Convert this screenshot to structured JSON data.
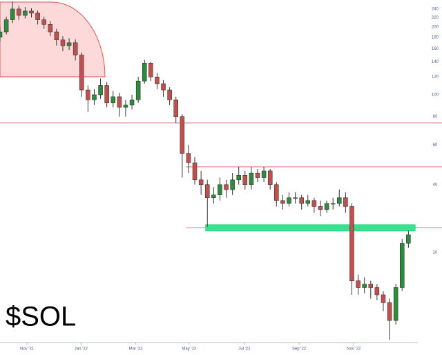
{
  "chart_data": {
    "type": "candlestick",
    "title": "$SOL",
    "log_scale": true,
    "up_color": "#2e8b3e",
    "down_color": "#c0504d",
    "x": [
      0,
      1,
      2,
      3,
      4,
      5,
      6,
      7,
      8,
      9,
      10,
      11,
      12,
      13,
      14,
      15,
      16,
      17,
      18,
      19,
      20,
      21,
      22,
      23,
      24,
      25,
      26,
      27,
      28,
      29,
      30,
      31,
      32,
      33,
      34,
      35,
      36,
      37,
      38,
      39,
      40,
      41,
      42,
      43,
      44,
      45,
      46,
      47,
      48,
      49,
      50,
      51,
      52,
      53,
      54,
      55,
      56,
      57,
      58,
      59,
      60,
      61,
      62,
      63,
      64,
      65
    ],
    "open": [
      180,
      190,
      215,
      240,
      225,
      235,
      230,
      215,
      205,
      190,
      175,
      165,
      170,
      150,
      105,
      95,
      100,
      110,
      92,
      98,
      88,
      90,
      95,
      115,
      138,
      120,
      112,
      105,
      95,
      80,
      55,
      50,
      42,
      40,
      35,
      36,
      40,
      38,
      42,
      44,
      40,
      45,
      43,
      46,
      40,
      34,
      33,
      35,
      35,
      33,
      34,
      32,
      31,
      33,
      33,
      35,
      32,
      15,
      14,
      14.5,
      14,
      13,
      12,
      10,
      14,
      22
    ],
    "high": [
      200,
      222,
      259,
      248,
      245,
      242,
      236,
      222,
      212,
      196,
      182,
      178,
      176,
      154,
      110,
      106,
      118,
      114,
      104,
      102,
      95,
      100,
      120,
      143,
      140,
      125,
      116,
      108,
      98,
      82,
      60,
      53,
      46,
      42,
      39,
      43,
      42,
      45,
      48,
      46,
      48,
      47,
      48,
      47,
      41,
      36,
      37,
      37,
      36,
      36,
      35,
      34,
      34,
      35,
      38,
      37,
      33,
      16,
      15.5,
      15,
      14.5,
      13.5,
      12.5,
      14.5,
      23,
      25
    ],
    "low": [
      172,
      185,
      208,
      215,
      218,
      220,
      205,
      196,
      182,
      165,
      156,
      158,
      142,
      98,
      84,
      90,
      96,
      88,
      88,
      80,
      80,
      86,
      92,
      112,
      115,
      106,
      98,
      90,
      75,
      43,
      45,
      40,
      36,
      26,
      33,
      34,
      35,
      36,
      40,
      38,
      38,
      41,
      41,
      38,
      32,
      31,
      32,
      33,
      31,
      32,
      30,
      29,
      30,
      31,
      32,
      30,
      13,
      13,
      13.2,
      12.5,
      12.3,
      11,
      8.2,
      9.6,
      13.5,
      21
    ],
    "close": [
      190,
      215,
      240,
      225,
      235,
      230,
      215,
      205,
      190,
      175,
      165,
      170,
      150,
      105,
      95,
      100,
      110,
      92,
      98,
      88,
      90,
      95,
      115,
      138,
      120,
      112,
      105,
      95,
      80,
      55,
      50,
      42,
      40,
      35,
      36,
      40,
      38,
      42,
      44,
      40,
      45,
      43,
      46,
      40,
      34,
      33,
      35,
      35,
      33,
      34,
      32,
      31,
      33,
      33,
      35,
      32,
      15,
      14,
      14.5,
      14,
      13,
      12,
      10,
      14,
      22,
      24
    ],
    "xlim": [
      0,
      66.5
    ],
    "xticks": [
      {
        "value": 4.3,
        "label": "Nov '21"
      },
      {
        "value": 12.9,
        "label": "Jan '22"
      },
      {
        "value": 21.6,
        "label": "Mar '22"
      },
      {
        "value": 30.1,
        "label": "May '22"
      },
      {
        "value": 38.9,
        "label": "Jul '22"
      },
      {
        "value": 47.6,
        "label": "Sep '22"
      },
      {
        "value": 56.3,
        "label": "Nov '22"
      }
    ],
    "ylim": [
      8.1,
      263
    ],
    "yticks": [
      240,
      220,
      200,
      180,
      160,
      140,
      120,
      100,
      80,
      60,
      40,
      20
    ],
    "levels": [
      {
        "value": 75,
        "from": 0,
        "color": "#e06070"
      },
      {
        "value": 48,
        "from": 29.6,
        "color": "#e06070"
      },
      {
        "value": 25.8,
        "from": 29.6,
        "color": "#e080c0"
      }
    ],
    "zone": {
      "low": 24.9,
      "high": 26.6,
      "from": 32.7,
      "to": 66.1,
      "color": "#2ee88a"
    }
  }
}
